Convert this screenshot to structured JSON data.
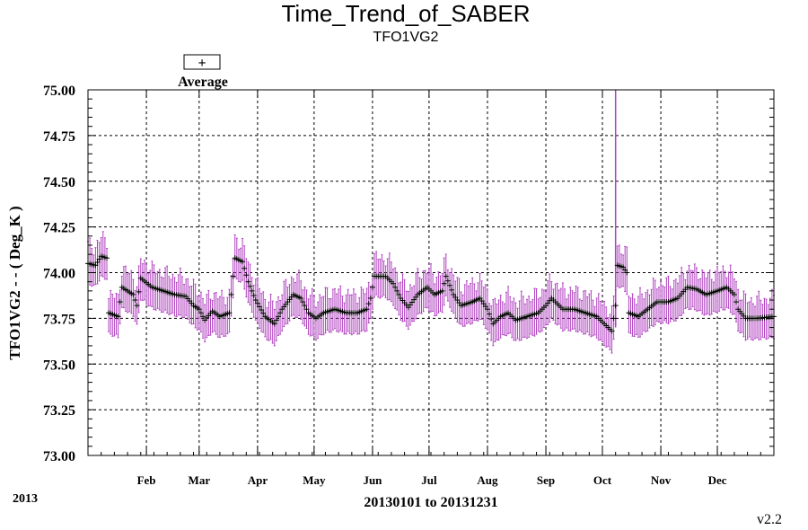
{
  "chart_data": {
    "type": "line",
    "title": "Time_Trend_of_SABER",
    "subtitle": "TFO1VG2",
    "ylabel": "TFO1VG2 - - ( Deg_K )",
    "xlabel": "20130101 to 20131231",
    "year_label": "2013",
    "version": "v2.2",
    "ylim": [
      73.0,
      75.0
    ],
    "xlim": [
      "2013-01-01",
      "2013-12-31"
    ],
    "y_ticks": [
      "73.00",
      "73.25",
      "73.50",
      "73.75",
      "74.00",
      "74.25",
      "74.50",
      "74.75",
      "75.00"
    ],
    "x_tick_labels": [
      {
        "label": "Feb",
        "date": "2013-02-01"
      },
      {
        "label": "Mar",
        "date": "2013-03-01"
      },
      {
        "label": "Apr",
        "date": "2013-04-01"
      },
      {
        "label": "May",
        "date": "2013-05-01"
      },
      {
        "label": "Jun",
        "date": "2013-06-01"
      },
      {
        "label": "Jul",
        "date": "2013-07-01"
      },
      {
        "label": "Aug",
        "date": "2013-08-01"
      },
      {
        "label": "Sep",
        "date": "2013-09-01"
      },
      {
        "label": "Oct",
        "date": "2013-10-01"
      },
      {
        "label": "Nov",
        "date": "2013-11-01"
      },
      {
        "label": "Dec",
        "date": "2013-12-01"
      }
    ],
    "grid": true,
    "legend": {
      "position": "top-left",
      "marker": "+",
      "entries": [
        "Average"
      ]
    },
    "colors": {
      "average": "#000000",
      "range": "#b040c0",
      "grid": "#000000"
    },
    "series": [
      {
        "name": "Average",
        "points": [
          [
            "2013-01-01",
            74.05
          ],
          [
            "2013-01-05",
            74.04
          ],
          [
            "2013-01-08",
            74.09
          ],
          [
            "2013-01-11",
            74.08
          ],
          [
            "2013-01-12",
            73.78
          ],
          [
            "2013-01-17",
            73.76
          ],
          [
            "2013-01-19",
            73.92
          ],
          [
            "2013-01-25",
            73.88
          ],
          [
            "2013-01-27",
            73.82
          ],
          [
            "2013-01-29",
            73.97
          ],
          [
            "2013-02-04",
            73.92
          ],
          [
            "2013-02-10",
            73.9
          ],
          [
            "2013-02-16",
            73.88
          ],
          [
            "2013-02-22",
            73.87
          ],
          [
            "2013-02-26",
            73.82
          ],
          [
            "2013-03-01",
            73.8
          ],
          [
            "2013-03-04",
            73.74
          ],
          [
            "2013-03-08",
            73.79
          ],
          [
            "2013-03-12",
            73.76
          ],
          [
            "2013-03-17",
            73.78
          ],
          [
            "2013-03-18",
            73.88
          ],
          [
            "2013-03-20",
            74.08
          ],
          [
            "2013-03-24",
            74.06
          ],
          [
            "2013-03-27",
            73.95
          ],
          [
            "2013-03-31",
            73.85
          ],
          [
            "2013-04-05",
            73.76
          ],
          [
            "2013-04-10",
            73.72
          ],
          [
            "2013-04-14",
            73.8
          ],
          [
            "2013-04-20",
            73.88
          ],
          [
            "2013-04-24",
            73.86
          ],
          [
            "2013-04-28",
            73.78
          ],
          [
            "2013-05-02",
            73.75
          ],
          [
            "2013-05-06",
            73.78
          ],
          [
            "2013-05-12",
            73.8
          ],
          [
            "2013-05-18",
            73.78
          ],
          [
            "2013-05-24",
            73.78
          ],
          [
            "2013-05-29",
            73.8
          ],
          [
            "2013-05-31",
            73.86
          ],
          [
            "2013-06-02",
            73.98
          ],
          [
            "2013-06-08",
            73.98
          ],
          [
            "2013-06-12",
            73.94
          ],
          [
            "2013-06-16",
            73.86
          ],
          [
            "2013-06-20",
            73.81
          ],
          [
            "2013-06-25",
            73.88
          ],
          [
            "2013-06-30",
            73.92
          ],
          [
            "2013-07-04",
            73.88
          ],
          [
            "2013-07-08",
            73.9
          ],
          [
            "2013-07-10",
            73.98
          ],
          [
            "2013-07-14",
            73.88
          ],
          [
            "2013-07-18",
            73.82
          ],
          [
            "2013-07-24",
            73.84
          ],
          [
            "2013-07-28",
            73.86
          ],
          [
            "2013-08-01",
            73.8
          ],
          [
            "2013-08-04",
            73.72
          ],
          [
            "2013-08-08",
            73.76
          ],
          [
            "2013-08-12",
            73.78
          ],
          [
            "2013-08-16",
            73.74
          ],
          [
            "2013-08-22",
            73.76
          ],
          [
            "2013-08-28",
            73.78
          ],
          [
            "2013-09-01",
            73.82
          ],
          [
            "2013-09-04",
            73.86
          ],
          [
            "2013-09-10",
            73.8
          ],
          [
            "2013-09-16",
            73.8
          ],
          [
            "2013-09-22",
            73.78
          ],
          [
            "2013-09-28",
            73.76
          ],
          [
            "2013-10-02",
            73.72
          ],
          [
            "2013-10-06",
            73.68
          ],
          [
            "2013-10-08",
            73.82
          ],
          [
            "2013-10-09",
            74.04
          ],
          [
            "2013-10-12",
            74.03
          ],
          [
            "2013-10-14",
            74.0
          ],
          [
            "2013-10-15",
            73.78
          ],
          [
            "2013-10-20",
            73.76
          ],
          [
            "2013-10-25",
            73.8
          ],
          [
            "2013-10-30",
            73.84
          ],
          [
            "2013-11-05",
            73.84
          ],
          [
            "2013-11-10",
            73.86
          ],
          [
            "2013-11-15",
            73.92
          ],
          [
            "2013-11-20",
            73.91
          ],
          [
            "2013-11-25",
            73.88
          ],
          [
            "2013-12-01",
            73.9
          ],
          [
            "2013-12-06",
            73.92
          ],
          [
            "2013-12-10",
            73.88
          ],
          [
            "2013-12-12",
            73.8
          ],
          [
            "2013-12-16",
            73.75
          ],
          [
            "2013-12-22",
            73.75
          ],
          [
            "2013-12-31",
            73.76
          ]
        ]
      }
    ],
    "range_band": {
      "half_width": 0.1,
      "spike": {
        "x": "2013-10-08",
        "y": [
          73.7,
          75.0
        ]
      }
    }
  }
}
